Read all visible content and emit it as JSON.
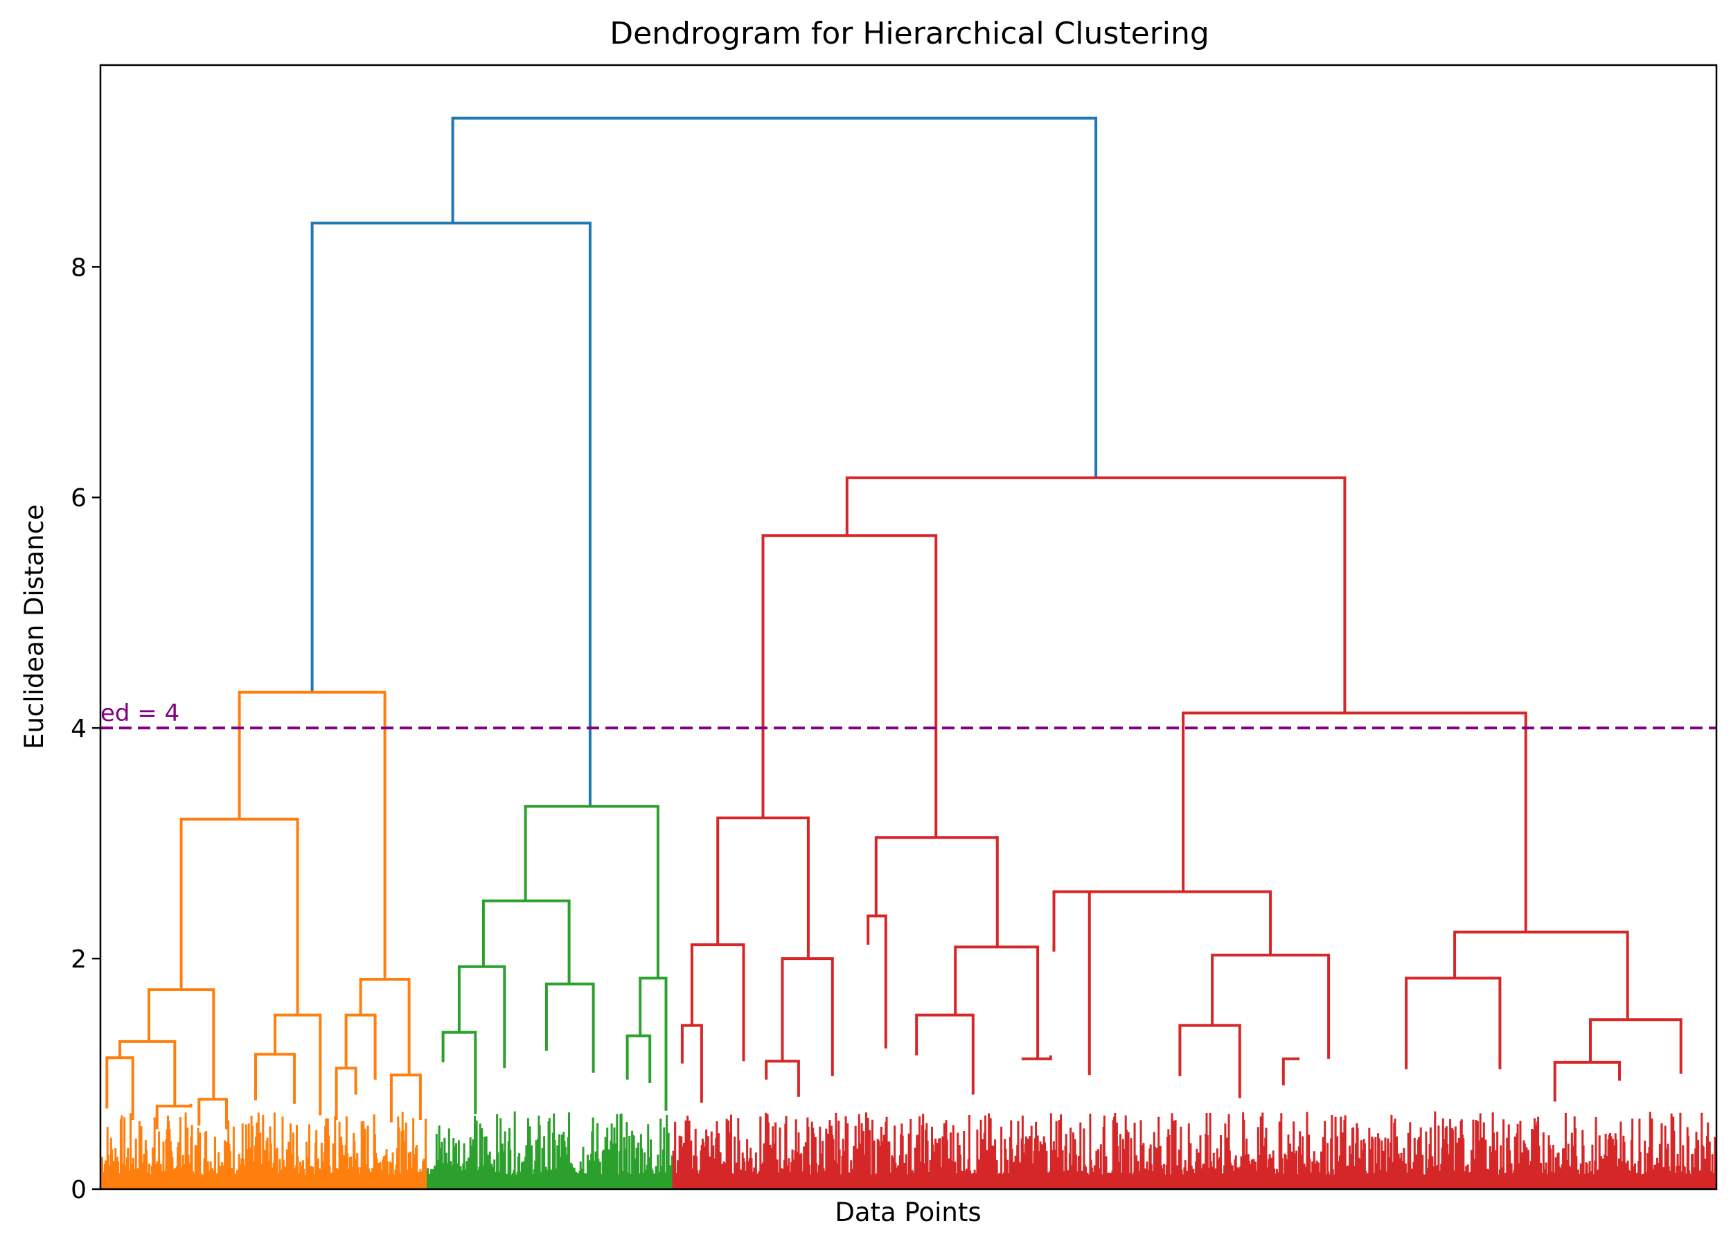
{
  "chart_data": {
    "type": "dendrogram",
    "title": "Dendrogram for Hierarchical Clustering",
    "xlabel": "Data Points",
    "ylabel": "Euclidean Distance",
    "xlim": [
      0,
      1000
    ],
    "ylim": [
      0,
      9.75
    ],
    "yticks": [
      0,
      2,
      4,
      6,
      8
    ],
    "ytick_labels": [
      "0",
      "2",
      "4",
      "6",
      "8"
    ],
    "grid": false,
    "threshold": {
      "value": 4,
      "label": "ed = 4",
      "color": "#800080",
      "style": "dashed"
    },
    "colors": {
      "orange": "#ff7f0e",
      "green": "#2ca02c",
      "red": "#d62728",
      "blue": "#1f77b4",
      "threshold": "#800080",
      "axis": "#000000"
    },
    "clusters": [
      {
        "color": "orange",
        "x_range": [
          0,
          202
        ]
      },
      {
        "color": "green",
        "x_range": [
          202,
          354
        ]
      },
      {
        "color": "red",
        "x_range": [
          354,
          1000
        ]
      }
    ],
    "links": [
      {
        "color": "blue",
        "x": [
          218,
          218,
          616,
          616
        ],
        "y": [
          8.38,
          9.29,
          9.29,
          6.17
        ]
      },
      {
        "color": "blue",
        "x": [
          131,
          131,
          303,
          303
        ],
        "y": [
          4.31,
          8.38,
          8.38,
          3.32
        ]
      },
      {
        "color": "orange",
        "x": [
          86,
          86,
          176,
          176
        ],
        "y": [
          3.21,
          4.31,
          4.31,
          1.82
        ]
      },
      {
        "color": "orange",
        "x": [
          50,
          50,
          122,
          122
        ],
        "y": [
          1.73,
          3.21,
          3.21,
          1.51
        ]
      },
      {
        "color": "orange",
        "x": [
          30,
          30,
          70,
          70
        ],
        "y": [
          1.28,
          1.73,
          1.73,
          0.78
        ]
      },
      {
        "color": "orange",
        "x": [
          12,
          12,
          46,
          46
        ],
        "y": [
          1.14,
          1.28,
          1.28,
          0.72
        ]
      },
      {
        "color": "orange",
        "x": [
          4,
          4,
          20,
          20
        ],
        "y": [
          0.7,
          1.14,
          1.14,
          0.6
        ]
      },
      {
        "color": "orange",
        "x": [
          35,
          35,
          56,
          56
        ],
        "y": [
          0.52,
          0.72,
          0.72,
          0.74
        ]
      },
      {
        "color": "orange",
        "x": [
          61,
          61,
          78,
          78
        ],
        "y": [
          0.55,
          0.78,
          0.78,
          0.52
        ]
      },
      {
        "color": "orange",
        "x": [
          108,
          108,
          136,
          136
        ],
        "y": [
          1.17,
          1.51,
          1.51,
          0.64
        ]
      },
      {
        "color": "orange",
        "x": [
          96,
          96,
          120,
          120
        ],
        "y": [
          0.77,
          1.17,
          1.17,
          0.74
        ]
      },
      {
        "color": "orange",
        "x": [
          161,
          161,
          191,
          191
        ],
        "y": [
          1.51,
          1.82,
          1.82,
          0.99
        ]
      },
      {
        "color": "orange",
        "x": [
          152,
          152,
          170,
          170
        ],
        "y": [
          1.05,
          1.51,
          1.51,
          0.95
        ]
      },
      {
        "color": "orange",
        "x": [
          146,
          146,
          158,
          158
        ],
        "y": [
          0.6,
          1.05,
          1.05,
          0.82
        ]
      },
      {
        "color": "orange",
        "x": [
          180,
          180,
          198,
          198
        ],
        "y": [
          0.58,
          0.99,
          0.99,
          0.6
        ]
      },
      {
        "color": "green",
        "x": [
          263,
          263,
          345,
          345
        ],
        "y": [
          2.5,
          3.32,
          3.32,
          1.83
        ]
      },
      {
        "color": "green",
        "x": [
          237,
          237,
          290,
          290
        ],
        "y": [
          1.93,
          2.5,
          2.5,
          1.78
        ]
      },
      {
        "color": "green",
        "x": [
          222,
          222,
          250,
          250
        ],
        "y": [
          1.36,
          1.93,
          1.93,
          1.05
        ]
      },
      {
        "color": "green",
        "x": [
          212,
          212,
          232,
          232
        ],
        "y": [
          1.1,
          1.36,
          1.36,
          0.65
        ]
      },
      {
        "color": "green",
        "x": [
          276,
          276,
          305,
          305
        ],
        "y": [
          1.2,
          1.78,
          1.78,
          1.01
        ]
      },
      {
        "color": "green",
        "x": [
          334,
          334,
          350,
          350
        ],
        "y": [
          1.33,
          1.83,
          1.83,
          0.68
        ]
      },
      {
        "color": "green",
        "x": [
          326,
          326,
          340,
          340
        ],
        "y": [
          0.95,
          1.33,
          1.33,
          0.92
        ]
      },
      {
        "color": "red",
        "x": [
          462,
          462,
          770,
          770
        ],
        "y": [
          5.67,
          6.17,
          6.17,
          4.13
        ]
      },
      {
        "color": "red",
        "x": [
          410,
          410,
          517,
          517
        ],
        "y": [
          3.22,
          5.67,
          5.67,
          3.05
        ]
      },
      {
        "color": "red",
        "x": [
          382,
          382,
          438,
          438
        ],
        "y": [
          2.12,
          3.22,
          3.22,
          2.0
        ]
      },
      {
        "color": "red",
        "x": [
          366,
          366,
          398,
          398
        ],
        "y": [
          1.42,
          2.12,
          2.12,
          1.11
        ]
      },
      {
        "color": "red",
        "x": [
          360,
          360,
          372,
          372
        ],
        "y": [
          1.09,
          1.42,
          1.42,
          0.75
        ]
      },
      {
        "color": "red",
        "x": [
          422,
          422,
          453,
          453
        ],
        "y": [
          1.11,
          2.0,
          2.0,
          0.98
        ]
      },
      {
        "color": "red",
        "x": [
          412,
          412,
          432,
          432
        ],
        "y": [
          0.95,
          1.11,
          1.11,
          0.8
        ]
      },
      {
        "color": "red",
        "x": [
          480,
          480,
          555,
          555
        ],
        "y": [
          2.37,
          3.05,
          3.05,
          2.1
        ]
      },
      {
        "color": "red",
        "x": [
          475,
          475,
          486,
          486
        ],
        "y": [
          2.12,
          2.37,
          2.37,
          1.22
        ]
      },
      {
        "color": "red",
        "x": [
          529,
          529,
          580,
          580
        ],
        "y": [
          1.51,
          2.1,
          2.1,
          1.13
        ]
      },
      {
        "color": "red",
        "x": [
          505,
          505,
          540,
          540
        ],
        "y": [
          1.16,
          1.51,
          1.51,
          0.82
        ]
      },
      {
        "color": "red",
        "x": [
          570,
          570,
          588,
          588
        ],
        "y": [
          1.13,
          1.13,
          1.13,
          1.16
        ]
      },
      {
        "color": "red",
        "x": [
          670,
          670,
          882,
          882
        ],
        "y": [
          2.58,
          4.13,
          4.13,
          2.23
        ]
      },
      {
        "color": "red",
        "x": [
          602,
          602,
          724,
          724
        ],
        "y": [
          2.58,
          2.58,
          2.58,
          2.03
        ]
      },
      {
        "color": "red",
        "x": [
          590,
          590,
          612,
          612
        ],
        "y": [
          2.06,
          2.58,
          2.58,
          0.99
        ]
      },
      {
        "color": "red",
        "x": [
          688,
          688,
          760,
          760
        ],
        "y": [
          1.42,
          2.03,
          2.03,
          1.13
        ]
      },
      {
        "color": "red",
        "x": [
          668,
          668,
          705,
          705
        ],
        "y": [
          0.98,
          1.42,
          1.42,
          0.79
        ]
      },
      {
        "color": "red",
        "x": [
          732,
          732,
          742,
          742
        ],
        "y": [
          0.9,
          1.13,
          1.13,
          1.13
        ]
      },
      {
        "color": "red",
        "x": [
          838,
          838,
          945,
          945
        ],
        "y": [
          1.83,
          2.23,
          2.23,
          1.47
        ]
      },
      {
        "color": "red",
        "x": [
          808,
          808,
          866,
          866
        ],
        "y": [
          1.04,
          1.83,
          1.83,
          1.04
        ]
      },
      {
        "color": "red",
        "x": [
          922,
          922,
          978,
          978
        ],
        "y": [
          1.1,
          1.47,
          1.47,
          1.0
        ]
      },
      {
        "color": "red",
        "x": [
          900,
          900,
          940,
          940
        ],
        "y": [
          0.76,
          1.1,
          1.1,
          0.94
        ]
      }
    ]
  }
}
